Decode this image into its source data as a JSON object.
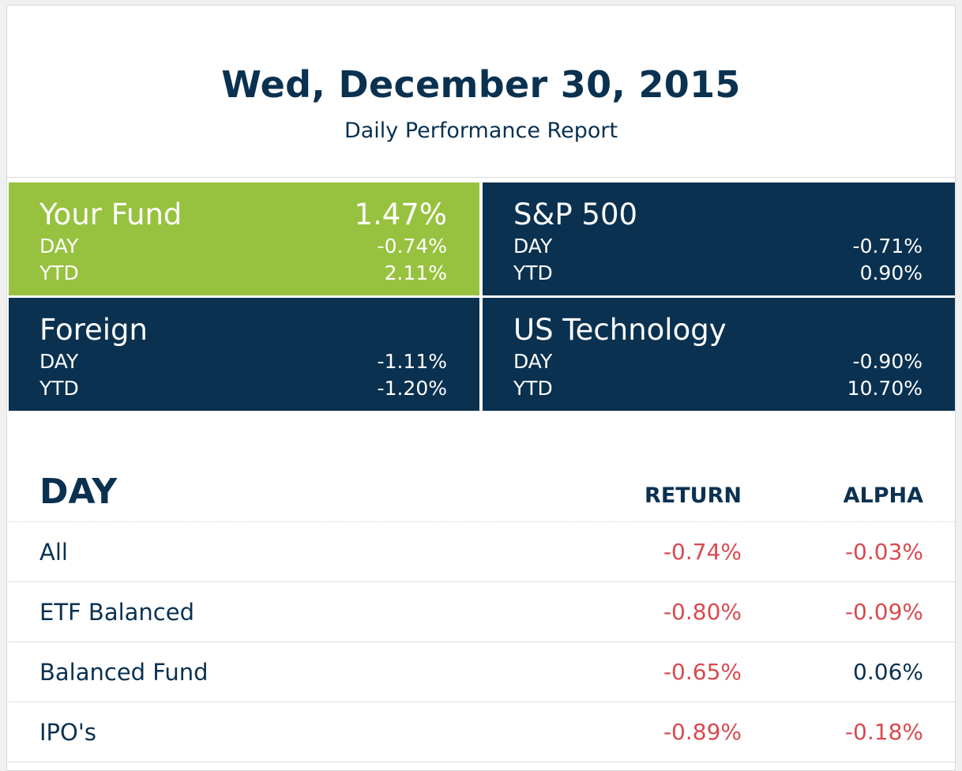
{
  "header": {
    "date": "Wed, December 30, 2015",
    "subtitle": "Daily Performance Report"
  },
  "colors": {
    "fund_tile": "#97c23f",
    "index_tile": "#0a3150",
    "negative": "#d84a4f",
    "text": "#0a3150"
  },
  "tiles": [
    {
      "name": "Your Fund",
      "total": "1.47%",
      "day_label": "DAY",
      "day": "-0.74%",
      "ytd_label": "YTD",
      "ytd": "2.11%",
      "color": "#97c23f"
    },
    {
      "name": "S&P 500",
      "total": "",
      "day_label": "DAY",
      "day": "-0.71%",
      "ytd_label": "YTD",
      "ytd": "0.90%",
      "color": "#0a3150"
    },
    {
      "name": "Foreign",
      "total": "",
      "day_label": "DAY",
      "day": "-1.11%",
      "ytd_label": "YTD",
      "ytd": "-1.20%",
      "color": "#0a3150"
    },
    {
      "name": "US Technology",
      "total": "",
      "day_label": "DAY",
      "day": "-0.90%",
      "ytd_label": "YTD",
      "ytd": "10.70%",
      "color": "#0a3150"
    }
  ],
  "day_table": {
    "title": "DAY",
    "col_return": "RETURN",
    "col_alpha": "ALPHA",
    "rows": [
      {
        "name": "All",
        "return": "-0.74%",
        "alpha": "-0.03%",
        "return_neg": true,
        "alpha_neg": true
      },
      {
        "name": "ETF Balanced",
        "return": "-0.80%",
        "alpha": "-0.09%",
        "return_neg": true,
        "alpha_neg": true
      },
      {
        "name": "Balanced Fund",
        "return": "-0.65%",
        "alpha": "0.06%",
        "return_neg": true,
        "alpha_neg": false
      },
      {
        "name": "IPO's",
        "return": "-0.89%",
        "alpha": "-0.18%",
        "return_neg": true,
        "alpha_neg": true
      }
    ]
  }
}
